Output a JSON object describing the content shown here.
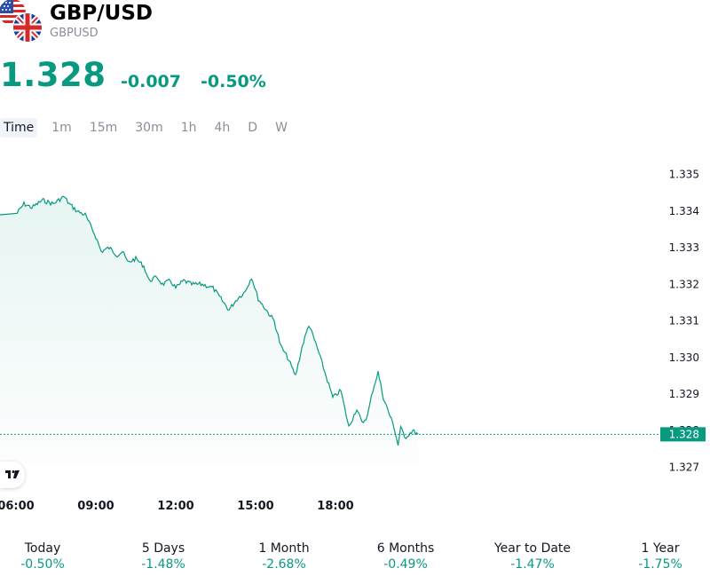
{
  "header": {
    "title": "GBP/USD",
    "symbol": "GBPUSD",
    "flags": [
      "us-flag-icon",
      "uk-flag-icon"
    ]
  },
  "quote": {
    "price": "1.328",
    "change": "-0.007",
    "change_percent": "-0.50%",
    "color": "#089981"
  },
  "tabs": [
    {
      "label": "Time",
      "active": true
    },
    {
      "label": "1m"
    },
    {
      "label": "15m"
    },
    {
      "label": "30m"
    },
    {
      "label": "1h"
    },
    {
      "label": "4h"
    },
    {
      "label": "D"
    },
    {
      "label": "W"
    }
  ],
  "chart_data": {
    "type": "area",
    "x_ticks": [
      "06:00",
      "09:00",
      "12:00",
      "15:00",
      "18:00"
    ],
    "y_ticks": [
      "1.335",
      "1.334",
      "1.333",
      "1.332",
      "1.331",
      "1.330",
      "1.329",
      "1.328",
      "1.327"
    ],
    "ylim": [
      1.3268,
      1.3356
    ],
    "last_price_label": "1.328",
    "last_price": 1.3279,
    "line_color": "#089981",
    "series": [
      {
        "x_hours": [
          6.0,
          6.3,
          6.6,
          7.0,
          7.4,
          7.8,
          8.0,
          8.3,
          8.6,
          8.8,
          9.0,
          9.2,
          9.5,
          9.8,
          10.0,
          10.2,
          10.5,
          10.8,
          11.0,
          11.3,
          11.5,
          11.8,
          12.0,
          12.3,
          12.6,
          13.0,
          13.4,
          13.7,
          14.0,
          14.3,
          14.6,
          14.85,
          15.1,
          15.4,
          15.7,
          15.95,
          16.2,
          16.5,
          16.75,
          17.0,
          17.3,
          17.6,
          17.9,
          18.2,
          18.5,
          18.8,
          19.0,
          19.2,
          19.4,
          19.6,
          19.8,
          20.0,
          20.2,
          20.35,
          20.45,
          20.6,
          20.9,
          21.1
        ],
        "values": [
          1.3339,
          1.3342,
          1.3341,
          1.3343,
          1.3342,
          1.3344,
          1.3342,
          1.334,
          1.3339,
          1.3336,
          1.3333,
          1.3329,
          1.333,
          1.3328,
          1.3329,
          1.3326,
          1.3327,
          1.3325,
          1.3321,
          1.3322,
          1.332,
          1.3321,
          1.3319,
          1.3321,
          1.332,
          1.332,
          1.3319,
          1.3316,
          1.3313,
          1.3316,
          1.3318,
          1.3322,
          1.3316,
          1.3313,
          1.331,
          1.3303,
          1.33,
          1.3295,
          1.3303,
          1.3309,
          1.3303,
          1.3296,
          1.3289,
          1.3291,
          1.3281,
          1.3286,
          1.3282,
          1.3284,
          1.3291,
          1.3296,
          1.3289,
          1.3285,
          1.3281,
          1.3276,
          1.3281,
          1.3278,
          1.328,
          1.3279
        ]
      }
    ]
  },
  "performance": [
    {
      "label": "Today",
      "value": "-0.50%"
    },
    {
      "label": "5 Days",
      "value": "-1.48%"
    },
    {
      "label": "1 Month",
      "value": "-2.68%"
    },
    {
      "label": "6 Months",
      "value": "-0.49%"
    },
    {
      "label": "Year to Date",
      "value": "-1.47%"
    },
    {
      "label": "1 Year",
      "value": "-1.75%"
    }
  ]
}
